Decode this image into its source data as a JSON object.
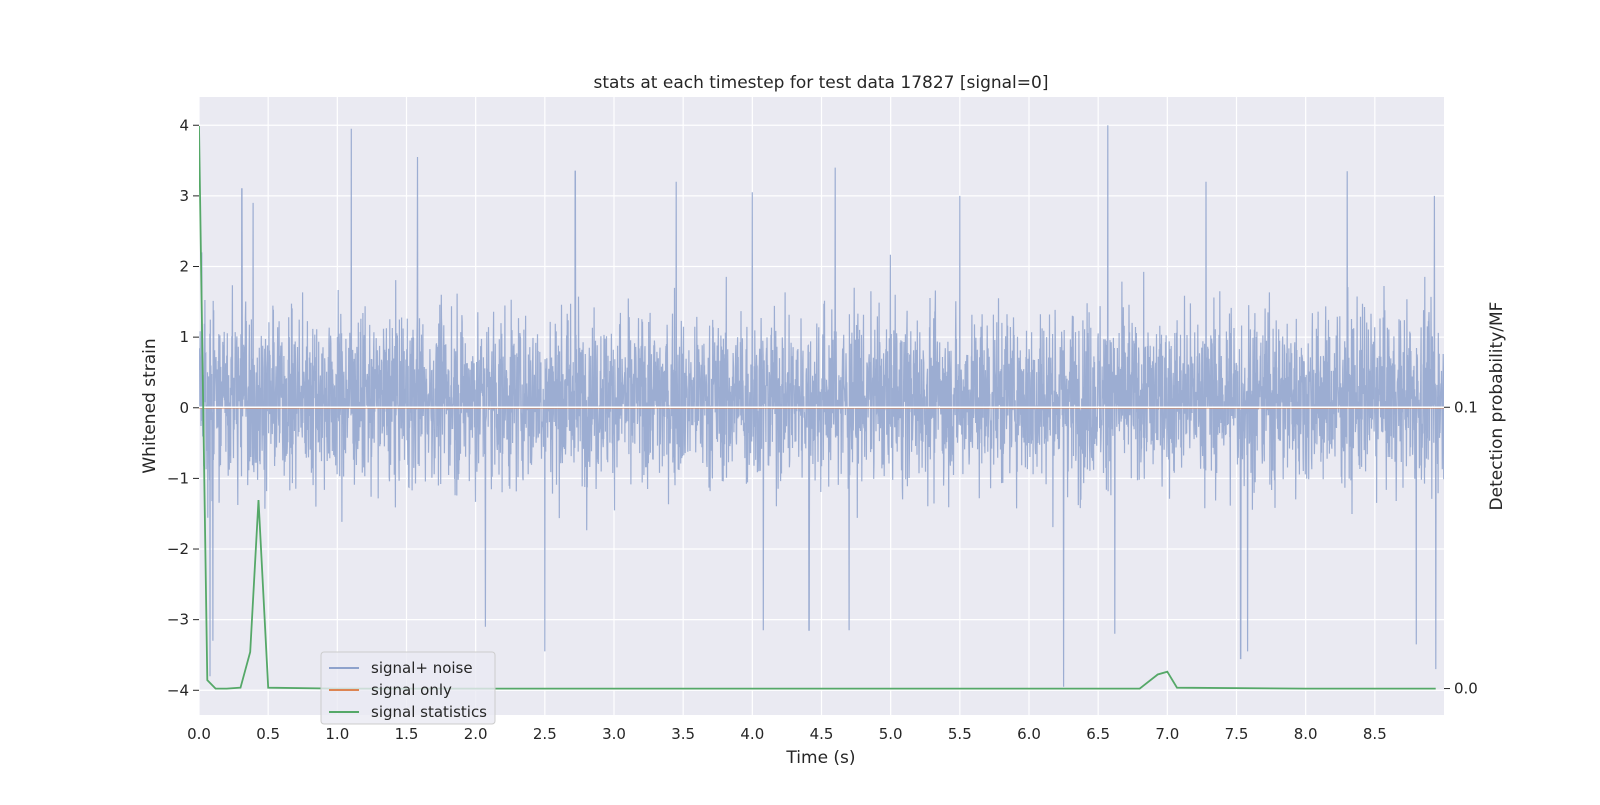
{
  "chart_data": {
    "type": "line",
    "title": "stats at each timestep for test data 17827 [signal=0]",
    "xlabel": "Time (s)",
    "ylabel": "Whitened strain",
    "y2label": "Detection probability/MF",
    "xlim": [
      0.0,
      9.0
    ],
    "ylim": [
      -4.35,
      4.4
    ],
    "y2lim": [
      -0.0094,
      0.2103
    ],
    "x_ticks": [
      0.0,
      0.5,
      1.0,
      1.5,
      2.0,
      2.5,
      3.0,
      3.5,
      4.0,
      4.5,
      5.0,
      5.5,
      6.0,
      6.5,
      7.0,
      7.5,
      8.0,
      8.5
    ],
    "x_tick_labels": [
      "0.0",
      "0.5",
      "1.0",
      "1.5",
      "2.0",
      "2.5",
      "3.0",
      "3.5",
      "4.0",
      "4.5",
      "5.0",
      "5.5",
      "6.0",
      "6.5",
      "7.0",
      "7.5",
      "8.0",
      "8.5"
    ],
    "y_ticks": [
      4,
      3,
      2,
      1,
      0,
      -1,
      -2,
      -3,
      -4
    ],
    "y_tick_labels": [
      "4",
      "3",
      "2",
      "1",
      "0",
      "−1",
      "−2",
      "−3",
      "−4"
    ],
    "y2_ticks": [
      0.1,
      0.0
    ],
    "y2_tick_labels": [
      "0.1",
      "0.0"
    ],
    "grid": true,
    "legend": {
      "placement": "lower-left",
      "entries": [
        {
          "label": "signal+ noise",
          "color": "#8ea2cc"
        },
        {
          "label": "signal only",
          "color": "#dd8452"
        },
        {
          "label": "signal statistics",
          "color": "#55a868"
        }
      ]
    },
    "series": [
      {
        "name": "signal+ noise",
        "axis": "left",
        "color": "#8ea2cc",
        "description_kind": "dense_noise",
        "x_range": [
          0.0,
          9.0
        ],
        "typical_envelope": [
          -1.8,
          2.3
        ],
        "peaks": [
          {
            "x": 0.02,
            "y": 2.2
          },
          {
            "x": 0.31,
            "y": 3.1
          },
          {
            "x": 0.39,
            "y": 2.9
          },
          {
            "x": 1.1,
            "y": 3.95
          },
          {
            "x": 1.58,
            "y": 3.55
          },
          {
            "x": 2.72,
            "y": 3.35
          },
          {
            "x": 3.45,
            "y": 3.2
          },
          {
            "x": 4.0,
            "y": 3.05
          },
          {
            "x": 4.6,
            "y": 3.4
          },
          {
            "x": 5.5,
            "y": 3.0
          },
          {
            "x": 6.57,
            "y": 4.0
          },
          {
            "x": 7.28,
            "y": 3.2
          },
          {
            "x": 8.3,
            "y": 3.35
          },
          {
            "x": 8.93,
            "y": 3.0
          }
        ],
        "troughs": [
          {
            "x": 0.08,
            "y": -3.8
          },
          {
            "x": 0.1,
            "y": -3.3
          },
          {
            "x": 2.07,
            "y": -3.1
          },
          {
            "x": 2.5,
            "y": -3.45
          },
          {
            "x": 4.08,
            "y": -3.15
          },
          {
            "x": 4.41,
            "y": -3.15
          },
          {
            "x": 4.7,
            "y": -3.15
          },
          {
            "x": 6.25,
            "y": -3.95
          },
          {
            "x": 6.62,
            "y": -3.2
          },
          {
            "x": 7.53,
            "y": -3.55
          },
          {
            "x": 7.58,
            "y": -3.45
          },
          {
            "x": 8.8,
            "y": -3.35
          },
          {
            "x": 8.94,
            "y": -3.7
          }
        ]
      },
      {
        "name": "signal only",
        "axis": "left",
        "color": "#dd8452",
        "x": [
          0.0,
          9.0
        ],
        "y": [
          0.0,
          0.0
        ]
      },
      {
        "name": "signal statistics",
        "axis": "right",
        "color": "#55a868",
        "x": [
          0.0,
          0.06,
          0.12,
          0.2,
          0.3,
          0.37,
          0.43,
          0.5,
          1.0,
          2.0,
          3.0,
          4.0,
          5.0,
          6.0,
          6.8,
          6.93,
          7.0,
          7.07,
          8.0,
          8.94
        ],
        "y": [
          0.2,
          0.003,
          0.0,
          0.0,
          0.0003,
          0.013,
          0.067,
          0.0003,
          0.0,
          0.0,
          0.0,
          0.0,
          0.0,
          0.0,
          0.0,
          0.005,
          0.006,
          0.0003,
          0.0,
          0.0
        ]
      }
    ]
  }
}
